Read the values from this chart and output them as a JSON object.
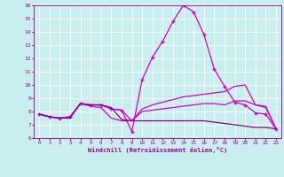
{
  "xlabel": "Windchill (Refroidissement éolien,°C)",
  "x": [
    0,
    1,
    2,
    3,
    4,
    5,
    6,
    7,
    8,
    9,
    10,
    11,
    12,
    13,
    14,
    15,
    16,
    17,
    18,
    19,
    20,
    21,
    22,
    23
  ],
  "lines": [
    {
      "y": [
        7.8,
        7.6,
        7.5,
        7.6,
        8.6,
        8.5,
        8.5,
        8.2,
        8.1,
        6.5,
        10.4,
        12.1,
        13.3,
        14.8,
        16.0,
        15.5,
        13.8,
        11.2,
        9.9,
        8.7,
        8.5,
        7.9,
        7.8,
        6.7
      ],
      "color": "#cc00cc",
      "marker": "+",
      "markersize": 3.5,
      "lw": 0.9
    },
    {
      "y": [
        7.8,
        7.6,
        7.5,
        7.6,
        8.6,
        8.4,
        8.3,
        7.5,
        7.3,
        7.3,
        8.2,
        8.5,
        8.7,
        8.9,
        9.1,
        9.2,
        9.3,
        9.4,
        9.5,
        9.9,
        10.0,
        8.5,
        8.4,
        6.7
      ],
      "color": "#cc00cc",
      "marker": null,
      "markersize": 0,
      "lw": 0.9
    },
    {
      "y": [
        7.8,
        7.6,
        7.5,
        7.6,
        8.6,
        8.5,
        8.5,
        8.2,
        8.1,
        7.3,
        8.0,
        8.1,
        8.2,
        8.3,
        8.4,
        8.5,
        8.6,
        8.6,
        8.5,
        8.8,
        8.8,
        8.5,
        8.3,
        6.7
      ],
      "color": "#cc00cc",
      "marker": null,
      "markersize": 0,
      "lw": 0.9
    },
    {
      "y": [
        7.8,
        7.6,
        7.5,
        7.5,
        8.6,
        8.5,
        8.5,
        8.3,
        7.4,
        7.3,
        7.3,
        7.3,
        7.3,
        7.3,
        7.3,
        7.3,
        7.3,
        7.2,
        7.1,
        7.0,
        6.9,
        6.8,
        6.8,
        6.7
      ],
      "color": "#880088",
      "marker": null,
      "markersize": 0,
      "lw": 0.9
    }
  ],
  "xlim": [
    -0.5,
    23.5
  ],
  "ylim": [
    6,
    16
  ],
  "yticks": [
    6,
    7,
    8,
    9,
    10,
    11,
    12,
    13,
    14,
    15,
    16
  ],
  "xticks": [
    0,
    1,
    2,
    3,
    4,
    5,
    6,
    7,
    8,
    9,
    10,
    11,
    12,
    13,
    14,
    15,
    16,
    17,
    18,
    19,
    20,
    21,
    22,
    23
  ],
  "bg_color": "#c8eef0",
  "grid_color": "#ffffff",
  "tick_color": "#990099",
  "label_color": "#990099"
}
